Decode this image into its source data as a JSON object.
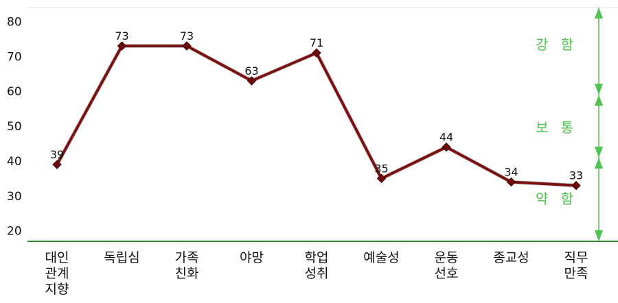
{
  "chart_data": {
    "type": "line",
    "categories": [
      [
        "대인",
        "관계",
        "지향"
      ],
      [
        "독립심"
      ],
      [
        "가족",
        "친화"
      ],
      [
        "야망"
      ],
      [
        "학업",
        "성취"
      ],
      [
        "예술성"
      ],
      [
        "운동",
        "선호"
      ],
      [
        "종교성"
      ],
      [
        "직무",
        "만족"
      ]
    ],
    "values": [
      39,
      73,
      73,
      63,
      71,
      35,
      44,
      34,
      33
    ],
    "data_labels": [
      "39",
      "73",
      "73",
      "63",
      "71",
      "35",
      "44",
      "34",
      "33"
    ],
    "yticks": [
      20,
      30,
      40,
      50,
      60,
      70,
      80
    ],
    "ytick_labels": [
      "20",
      "30",
      "40",
      "50",
      "60",
      "70",
      "80"
    ],
    "ylim": [
      17,
      84
    ],
    "title": "",
    "xlabel": "",
    "ylabel": "",
    "zones": [
      {
        "label": "강 함",
        "from": 59,
        "to": 84
      },
      {
        "label": "보 통",
        "from": 41,
        "to": 59
      },
      {
        "label": "약 함",
        "from": 17,
        "to": 41
      }
    ],
    "colors": {
      "line": "#7a1010",
      "marker": "#6e0a0a",
      "axis": "#2e8b2e",
      "zone": "#4fc24f",
      "grid": "#e6e6e6"
    }
  }
}
